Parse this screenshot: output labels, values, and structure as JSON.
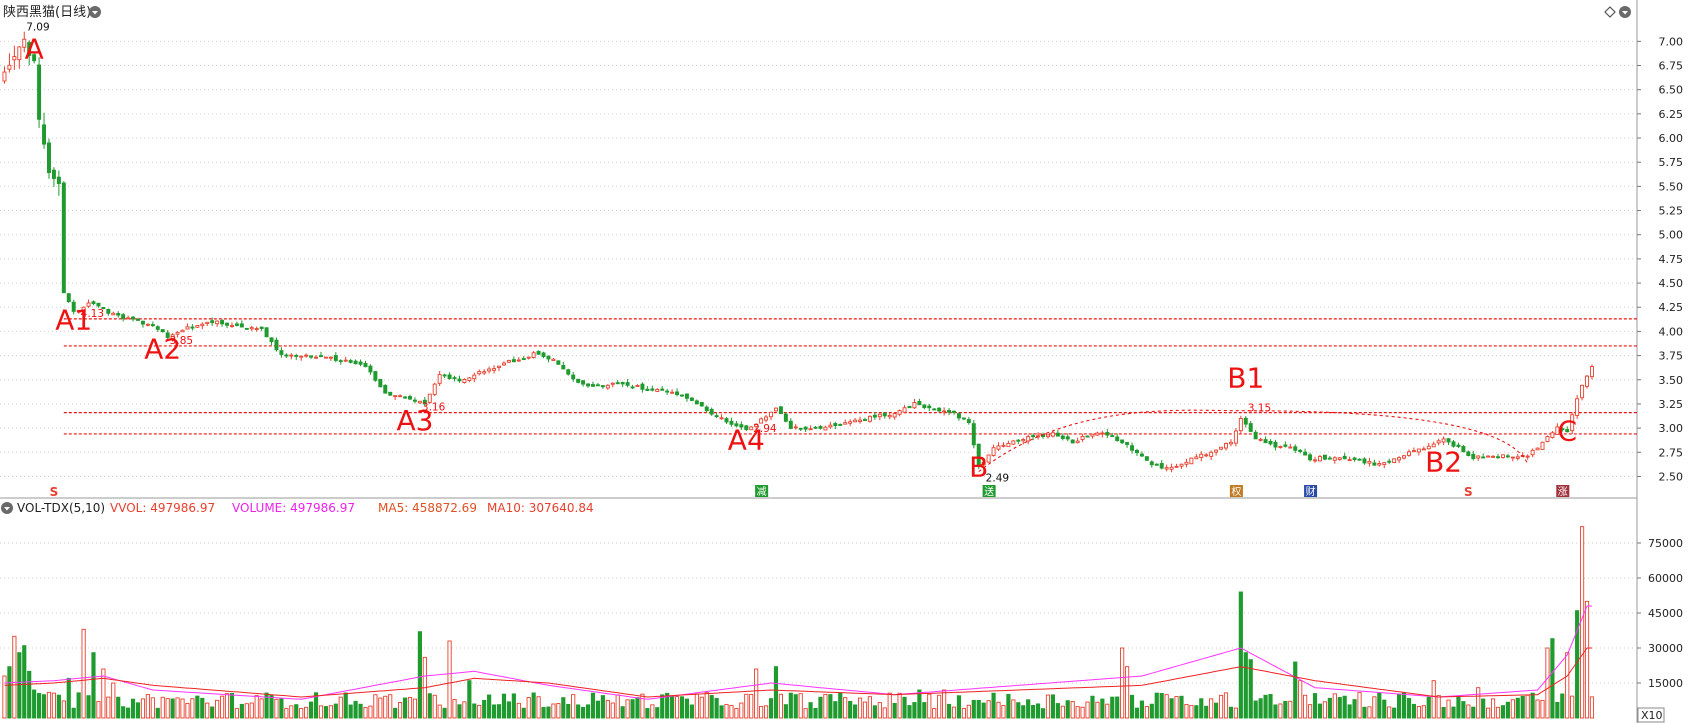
{
  "header": {
    "title": "陕西黑猫(日线)",
    "corner_icons": [
      "diamond-icon",
      "settings-icon"
    ]
  },
  "volume_header": {
    "indicator": "VOL-TDX(5,10)",
    "vvol": "VVOL: 497986.97",
    "volume": "VOLUME: 497986.97",
    "ma5": "MA5: 458872.69",
    "ma10": "MA10: 307640.84"
  },
  "colors": {
    "up": "#e8402e",
    "down": "#1f9a2f",
    "annotation": "#ee1111",
    "ma5": "#ff33ff",
    "ma10": "#ee2222",
    "grid": "#cfcfcf",
    "axis_text": "#222222"
  },
  "chart_data": [
    {
      "type": "candlestick",
      "title": "陕西黑猫(日线)",
      "ylim": [
        2.36,
        7.2
      ],
      "y_ticks": [
        "7.00",
        "6.75",
        "6.50",
        "6.25",
        "6.00",
        "5.75",
        "5.50",
        "5.25",
        "5.00",
        "4.75",
        "4.50",
        "4.25",
        "4.00",
        "3.75",
        "3.50",
        "3.25",
        "3.00",
        "2.75",
        "2.50"
      ],
      "y_tick_values": [
        7.0,
        6.75,
        6.5,
        6.25,
        6.0,
        5.75,
        5.5,
        5.25,
        5.0,
        4.75,
        4.5,
        4.25,
        4.0,
        3.75,
        3.5,
        3.25,
        3.0,
        2.75,
        2.5
      ],
      "grid": true,
      "bar_count": 330,
      "support_resistance_levels": [
        4.13,
        3.85,
        3.16,
        2.94
      ],
      "price_labels": [
        {
          "text": "7.09",
          "value": 7.09
        },
        {
          "text": "4.13",
          "value": 4.13
        },
        {
          "text": "3.85",
          "value": 3.85
        },
        {
          "text": "3.16",
          "value": 3.16
        },
        {
          "text": "2.94",
          "value": 2.94
        },
        {
          "text": "2.49",
          "value": 2.49
        },
        {
          "text": "3.15",
          "value": 3.15
        }
      ],
      "annotations": [
        {
          "text": "A",
          "bar": 6,
          "value": 6.82
        },
        {
          "text": "A1",
          "bar": 14,
          "value": 4.02
        },
        {
          "text": "A2",
          "bar": 32,
          "value": 3.72
        },
        {
          "text": "A3",
          "bar": 83,
          "value": 2.98
        },
        {
          "text": "A4",
          "bar": 150,
          "value": 2.78
        },
        {
          "text": "B",
          "bar": 197,
          "value": 2.5
        },
        {
          "text": "B1",
          "bar": 251,
          "value": 3.42
        },
        {
          "text": "B2",
          "bar": 291,
          "value": 2.55
        },
        {
          "text": "C",
          "bar": 316,
          "value": 2.87
        }
      ],
      "event_markers": [
        {
          "text": "S",
          "bar": 10,
          "color": "#e8402e"
        },
        {
          "text": "减",
          "bar": 153,
          "color": "#1f9a2f"
        },
        {
          "text": "送",
          "bar": 199,
          "color": "#1f9a2f"
        },
        {
          "text": "权",
          "bar": 249,
          "color": "#c07a20"
        },
        {
          "text": "财",
          "bar": 264,
          "color": "#2a4aa8"
        },
        {
          "text": "S",
          "bar": 296,
          "color": "#e8402e"
        },
        {
          "text": "涨",
          "bar": 315,
          "color": "#a0303a"
        }
      ],
      "arc": {
        "start_bar": 197,
        "peak_bar": 250,
        "end_bar": 308,
        "peak_value": 3.18,
        "end_value": 2.63
      },
      "price_path": [
        [
          0,
          6.65
        ],
        [
          2,
          6.9
        ],
        [
          4,
          7.02
        ],
        [
          6,
          6.75
        ],
        [
          7,
          6.2
        ],
        [
          9,
          5.7
        ],
        [
          11,
          5.5
        ],
        [
          12,
          4.4
        ],
        [
          14,
          4.2
        ],
        [
          17,
          4.3
        ],
        [
          21,
          4.2
        ],
        [
          25,
          4.13
        ],
        [
          30,
          4.05
        ],
        [
          33,
          3.95
        ],
        [
          38,
          4.05
        ],
        [
          42,
          4.1
        ],
        [
          47,
          4.05
        ],
        [
          52,
          4.02
        ],
        [
          56,
          3.75
        ],
        [
          62,
          3.75
        ],
        [
          68,
          3.7
        ],
        [
          73,
          3.65
        ],
        [
          77,
          3.35
        ],
        [
          82,
          3.3
        ],
        [
          85,
          3.25
        ],
        [
          88,
          3.55
        ],
        [
          92,
          3.48
        ],
        [
          96,
          3.58
        ],
        [
          100,
          3.65
        ],
        [
          104,
          3.72
        ],
        [
          108,
          3.78
        ],
        [
          111,
          3.7
        ],
        [
          114,
          3.55
        ],
        [
          118,
          3.42
        ],
        [
          122,
          3.45
        ],
        [
          126,
          3.45
        ],
        [
          130,
          3.4
        ],
        [
          135,
          3.38
        ],
        [
          139,
          3.3
        ],
        [
          143,
          3.15
        ],
        [
          147,
          3.05
        ],
        [
          150,
          2.98
        ],
        [
          153,
          3.08
        ],
        [
          156,
          3.2
        ],
        [
          159,
          3.0
        ],
        [
          163,
          3.0
        ],
        [
          168,
          3.02
        ],
        [
          172,
          3.08
        ],
        [
          176,
          3.12
        ],
        [
          180,
          3.15
        ],
        [
          184,
          3.25
        ],
        [
          188,
          3.2
        ],
        [
          192,
          3.15
        ],
        [
          195,
          3.05
        ],
        [
          197,
          2.6
        ],
        [
          200,
          2.78
        ],
        [
          204,
          2.88
        ],
        [
          208,
          2.9
        ],
        [
          212,
          2.95
        ],
        [
          216,
          2.85
        ],
        [
          220,
          2.95
        ],
        [
          224,
          2.92
        ],
        [
          228,
          2.78
        ],
        [
          232,
          2.62
        ],
        [
          236,
          2.58
        ],
        [
          240,
          2.68
        ],
        [
          244,
          2.75
        ],
        [
          248,
          2.85
        ],
        [
          250,
          3.1
        ],
        [
          253,
          2.9
        ],
        [
          257,
          2.82
        ],
        [
          261,
          2.78
        ],
        [
          264,
          2.68
        ],
        [
          268,
          2.7
        ],
        [
          273,
          2.68
        ],
        [
          278,
          2.62
        ],
        [
          283,
          2.72
        ],
        [
          288,
          2.82
        ],
        [
          291,
          2.88
        ],
        [
          294,
          2.8
        ],
        [
          297,
          2.7
        ],
        [
          301,
          2.72
        ],
        [
          305,
          2.7
        ],
        [
          308,
          2.72
        ],
        [
          311,
          2.85
        ],
        [
          314,
          3.02
        ],
        [
          316,
          2.98
        ],
        [
          318,
          3.3
        ],
        [
          320,
          3.55
        ],
        [
          321,
          3.62
        ]
      ]
    },
    {
      "type": "bar",
      "title": "VOL-TDX(5,10)",
      "ylim": [
        0,
        84000
      ],
      "y_ticks": [
        "75000",
        "60000",
        "45000",
        "30000",
        "15000"
      ],
      "y_tick_values": [
        75000,
        60000,
        45000,
        30000,
        15000
      ],
      "unit_label": "X10",
      "spikes": [
        [
          0,
          18000
        ],
        [
          1,
          22000
        ],
        [
          2,
          35000
        ],
        [
          3,
          28000
        ],
        [
          4,
          31000
        ],
        [
          5,
          20000
        ],
        [
          6,
          12000
        ],
        [
          9,
          11000
        ],
        [
          13,
          17000
        ],
        [
          16,
          38000
        ],
        [
          18,
          28000
        ],
        [
          20,
          21000
        ],
        [
          22,
          15000
        ],
        [
          84,
          37000
        ],
        [
          85,
          26000
        ],
        [
          90,
          33000
        ],
        [
          94,
          16000
        ],
        [
          152,
          21000
        ],
        [
          156,
          22000
        ],
        [
          185,
          12000
        ],
        [
          190,
          12000
        ],
        [
          226,
          30000
        ],
        [
          227,
          22000
        ],
        [
          250,
          54000
        ],
        [
          251,
          28000
        ],
        [
          252,
          25000
        ],
        [
          261,
          24000
        ],
        [
          262,
          16000
        ],
        [
          289,
          16000
        ],
        [
          298,
          13000
        ],
        [
          312,
          30000
        ],
        [
          313,
          34000
        ],
        [
          316,
          28000
        ],
        [
          318,
          46000
        ],
        [
          319,
          82000
        ],
        [
          320,
          50000
        ]
      ],
      "series": [
        {
          "name": "MA5",
          "values": [
            [
              0,
              15000
            ],
            [
              10,
              16000
            ],
            [
              20,
              18000
            ],
            [
              30,
              12000
            ],
            [
              60,
              8000
            ],
            [
              85,
              18000
            ],
            [
              95,
              20000
            ],
            [
              110,
              14000
            ],
            [
              130,
              8000
            ],
            [
              155,
              15000
            ],
            [
              180,
              10000
            ],
            [
              230,
              18000
            ],
            [
              250,
              30000
            ],
            [
              265,
              13000
            ],
            [
              290,
              9000
            ],
            [
              310,
              12000
            ],
            [
              316,
              27000
            ],
            [
              320,
              48000
            ]
          ]
        },
        {
          "name": "MA10",
          "values": [
            [
              0,
              14000
            ],
            [
              10,
              15000
            ],
            [
              20,
              17000
            ],
            [
              30,
              14000
            ],
            [
              60,
              9000
            ],
            [
              85,
              13000
            ],
            [
              95,
              17000
            ],
            [
              110,
              15000
            ],
            [
              130,
              9000
            ],
            [
              155,
              12000
            ],
            [
              180,
              10000
            ],
            [
              230,
              14000
            ],
            [
              250,
              22000
            ],
            [
              265,
              16000
            ],
            [
              290,
              9000
            ],
            [
              310,
              10000
            ],
            [
              316,
              18000
            ],
            [
              320,
              30000
            ]
          ]
        }
      ]
    }
  ]
}
